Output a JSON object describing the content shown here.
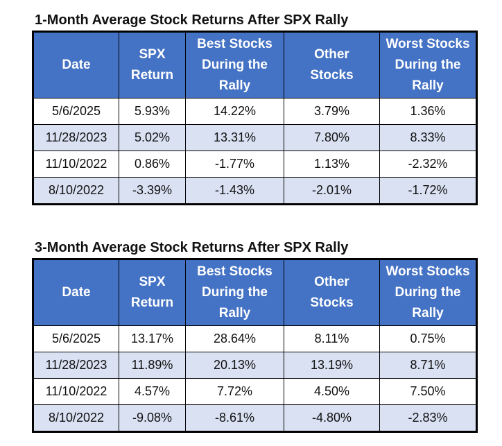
{
  "chart_data": [
    {
      "type": "table",
      "title": "1-Month Average Stock Returns After SPX Rally",
      "columns": [
        [
          "Date"
        ],
        [
          "SPX",
          "Return"
        ],
        [
          "Best Stocks",
          "During the",
          "Rally"
        ],
        [
          "Other",
          "Stocks"
        ],
        [
          "Worst Stocks",
          "During the",
          "Rally"
        ]
      ],
      "rows": [
        [
          "5/6/2025",
          "5.93%",
          "14.22%",
          "3.79%",
          "1.36%"
        ],
        [
          "11/28/2023",
          "5.02%",
          "13.31%",
          "7.80%",
          "8.33%"
        ],
        [
          "11/10/2022",
          "0.86%",
          "-1.77%",
          "1.13%",
          "-2.32%"
        ],
        [
          "8/10/2022",
          "-3.39%",
          "-1.43%",
          "-2.01%",
          "-1.72%"
        ]
      ]
    },
    {
      "type": "table",
      "title": "3-Month Average Stock Returns After SPX Rally",
      "columns": [
        [
          "Date"
        ],
        [
          "SPX",
          "Return"
        ],
        [
          "Best Stocks",
          "During the",
          "Rally"
        ],
        [
          "Other",
          "Stocks"
        ],
        [
          "Worst Stocks",
          "During the",
          "Rally"
        ]
      ],
      "rows": [
        [
          "5/6/2025",
          "13.17%",
          "28.64%",
          "8.11%",
          "0.75%"
        ],
        [
          "11/28/2023",
          "11.89%",
          "20.13%",
          "13.19%",
          "8.71%"
        ],
        [
          "11/10/2022",
          "4.57%",
          "7.72%",
          "4.50%",
          "7.50%"
        ],
        [
          "8/10/2022",
          "-9.08%",
          "-8.61%",
          "-4.80%",
          "-2.83%"
        ]
      ]
    }
  ],
  "colors": {
    "header_bg": "#4472c4",
    "header_text": "#ffffff",
    "row_even_bg": "#d9e1f2",
    "row_odd_bg": "#ffffff",
    "border": "#000000"
  }
}
